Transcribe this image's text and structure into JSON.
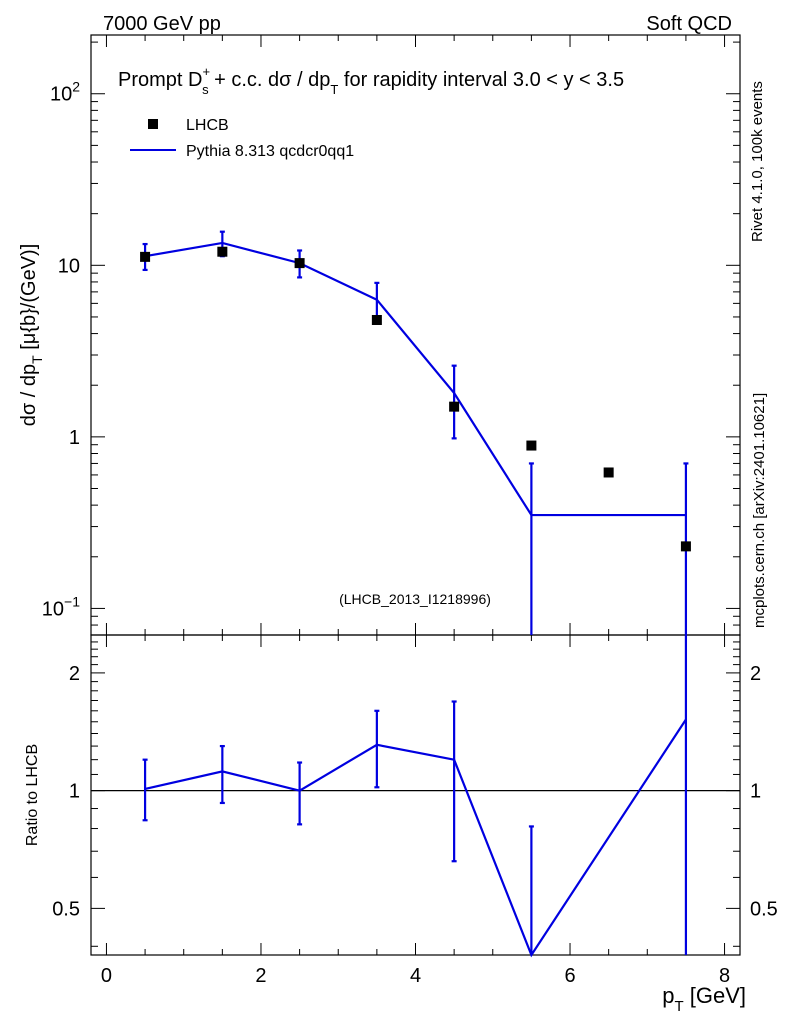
{
  "header": {
    "left": "7000 GeV pp",
    "right": "Soft QCD"
  },
  "side_labels": {
    "rivet": "Rivet 4.1.0,  100k events",
    "mcplots": "mcplots.cern.ch [arXiv:2401.10621]"
  },
  "colors": {
    "data": "#000000",
    "mc": "#0000e0",
    "axis": "#000000",
    "side_text": "#7f7f7f"
  },
  "chart_data": [
    {
      "type": "scatter",
      "title": {
        "prefix": "Prompt D",
        "sup": "+",
        "sub": "s",
        "middle": " + c.c.  dσ / dp",
        "sub2": "T",
        "suffix": " for rapidity interval 3.0 < y < 3.5"
      },
      "ylabel": {
        "main": "dσ / dp",
        "sub": "T",
        "unit": " [μ{b}/(GeV)]"
      },
      "yscale": "log",
      "ylim": [
        0.07,
        220
      ],
      "xlim": [
        -0.2,
        8.2
      ],
      "yticks": [
        {
          "value": 100,
          "base": "10",
          "exp": "2"
        },
        {
          "value": 10,
          "label": "10"
        },
        {
          "value": 1,
          "label": "1"
        },
        {
          "value": 0.1,
          "base": "10",
          "exp": "−1"
        }
      ],
      "legend": {
        "position": "top-left",
        "entries": [
          {
            "label": "LHCB",
            "style": "marker"
          },
          {
            "label": "Pythia 8.313 qcdcr0qq1",
            "style": "line"
          }
        ]
      },
      "annotation": "(LHCB_2013_I1218996)",
      "data_series": {
        "name": "LHCB",
        "x": [
          0.5,
          1.5,
          2.5,
          3.5,
          4.5,
          5.5,
          6.5,
          7.5
        ],
        "y": [
          11.2,
          12.0,
          10.3,
          4.8,
          1.5,
          0.89,
          0.62,
          0.23
        ]
      },
      "mc_series": {
        "name": "Pythia 8.313 qcdcr0qq1",
        "bins": [
          [
            0,
            1
          ],
          [
            1,
            2
          ],
          [
            2,
            3
          ],
          [
            3,
            4
          ],
          [
            4,
            5
          ],
          [
            5,
            6
          ],
          [
            6,
            7
          ],
          [
            7,
            8
          ]
        ],
        "x": [
          0.5,
          1.5,
          2.5,
          3.5,
          4.5,
          5.5,
          7.5
        ],
        "y": [
          11.3,
          13.5,
          10.3,
          6.3,
          1.8,
          0.35,
          0.35
        ],
        "yerr_low": [
          9.4,
          11.3,
          8.5,
          4.7,
          0.98,
          0.05,
          0.05
        ],
        "yerr_high": [
          13.3,
          15.7,
          12.2,
          7.9,
          2.6,
          0.7,
          0.7
        ],
        "flat_segment": [
          5.5,
          7.5
        ]
      }
    },
    {
      "type": "line",
      "ylabel": "Ratio to LHCB",
      "xlabel": {
        "main": "p",
        "sub": "T",
        "unit": " [GeV]"
      },
      "xlim": [
        -0.2,
        8.2
      ],
      "ylim": [
        0.38,
        2.5
      ],
      "xticks": [
        0,
        2,
        4,
        6,
        8
      ],
      "yticks": [
        {
          "value": 2,
          "label": "2"
        },
        {
          "value": 1,
          "label": "1"
        },
        {
          "value": 0.5,
          "label": "0.5"
        }
      ],
      "reference_line": 1.0,
      "series": [
        {
          "name": "Pythia 8.313 qcdcr0qq1 / LHCB",
          "x": [
            0.5,
            1.5,
            2.5,
            3.5,
            4.5,
            5.5,
            7.5
          ],
          "y": [
            1.01,
            1.12,
            1.0,
            1.31,
            1.2,
            0.38,
            1.52
          ],
          "yerr_low": [
            0.84,
            0.93,
            0.82,
            1.02,
            0.66,
            0.38,
            0.38
          ],
          "yerr_high": [
            1.2,
            1.3,
            1.18,
            1.6,
            1.69,
            0.81,
            2.5
          ]
        }
      ]
    }
  ]
}
